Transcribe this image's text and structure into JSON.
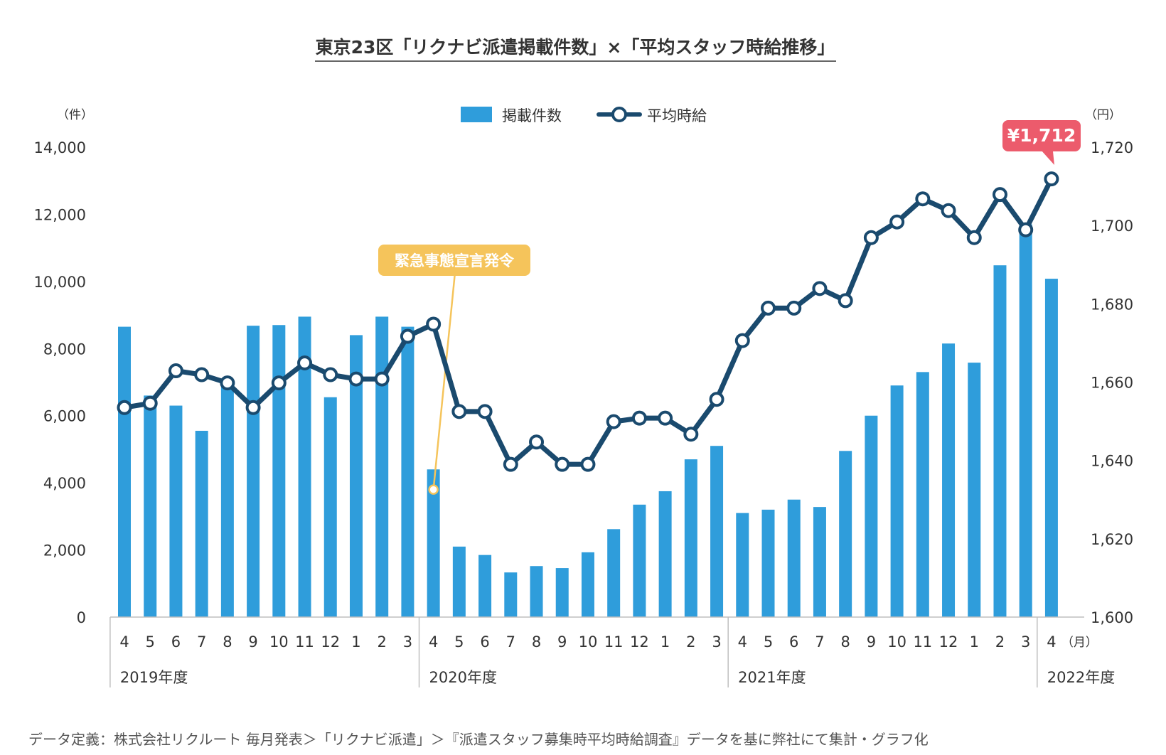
{
  "chart_data": {
    "type": "bar+line",
    "title": "東京23区「リクナビ派遣掲載件数」×「平均スタッフ時給推移」",
    "legend": [
      "掲載件数",
      "平均時給"
    ],
    "legend_position": "top-center",
    "y_left_unit": "（件）",
    "y_right_unit": "（円）",
    "y_left_ticks": [
      "0",
      "2,000",
      "4,000",
      "6,000",
      "8,000",
      "10,000",
      "12,000",
      "14,000"
    ],
    "y_right_ticks": [
      "1,600",
      "1,620",
      "1,640",
      "1,660",
      "1,680",
      "1,700",
      "1,720"
    ],
    "ylim_left": [
      0,
      14000
    ],
    "ylim_right": [
      1600,
      1720
    ],
    "months": [
      "4",
      "5",
      "6",
      "7",
      "8",
      "9",
      "10",
      "11",
      "12",
      "1",
      "2",
      "3",
      "4",
      "5",
      "6",
      "7",
      "8",
      "9",
      "10",
      "11",
      "12",
      "1",
      "2",
      "3",
      "4",
      "5",
      "6",
      "7",
      "8",
      "9",
      "10",
      "11",
      "12",
      "1",
      "2",
      "3",
      "4"
    ],
    "month_unit": "（月）",
    "fiscal_years": [
      "2019年度",
      "2020年度",
      "2021年度",
      "2022年度"
    ],
    "series": [
      {
        "name": "掲載件数",
        "type": "bar",
        "axis": "left",
        "color": "#2f9ddb",
        "values": [
          8650,
          6600,
          6300,
          5550,
          7000,
          8680,
          8700,
          8950,
          6550,
          8400,
          8950,
          8650,
          4400,
          2100,
          1850,
          1330,
          1520,
          1460,
          1930,
          2620,
          3350,
          3750,
          4700,
          5100,
          3100,
          3200,
          3500,
          3280,
          4950,
          6000,
          6900,
          7300,
          8150,
          7580,
          10480,
          11700,
          10080
        ]
      },
      {
        "name": "平均時給",
        "type": "line",
        "axis": "right",
        "color": "#1a4a6e",
        "values": [
          1653.5,
          1654.6,
          1662.9,
          1661.9,
          1659.8,
          1653.5,
          1659.8,
          1664.9,
          1661.9,
          1660.8,
          1660.8,
          1671.7,
          1674.8,
          1652.5,
          1652.5,
          1639.0,
          1644.7,
          1639.0,
          1639.0,
          1649.9,
          1650.8,
          1650.8,
          1646.7,
          1655.6,
          1670.6,
          1678.9,
          1678.9,
          1683.9,
          1680.8,
          1696.9,
          1700.9,
          1706.8,
          1703.8,
          1696.9,
          1707.9,
          1698.9,
          1711.9
        ]
      }
    ],
    "annotations": [
      {
        "text": "緊急事態宣言発令",
        "index": 12,
        "color": "#f5c45b"
      },
      {
        "text": "¥1,712",
        "index": 36,
        "color": "#ec5b6c"
      }
    ],
    "source_note": "データ定義：株式会社リクルート 毎月発表＞「リクナビ派遣」＞『派遣スタッフ募集時平均時給調査』データを基に弊社にて集計・グラフ化"
  }
}
